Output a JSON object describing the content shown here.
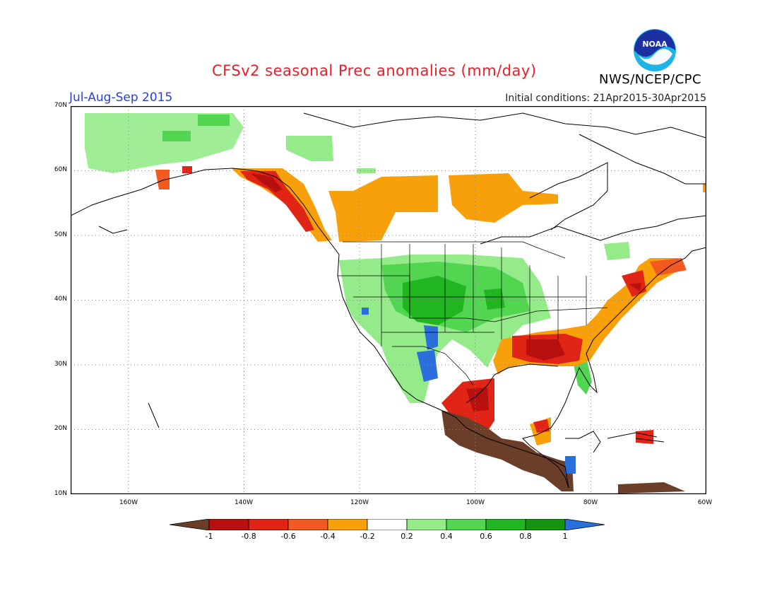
{
  "header": {
    "title": "CFSv2 seasonal Prec anomalies (mm/day)",
    "period": "Jul-Aug-Sep 2015",
    "initial_conditions": "Initial conditions: 21Apr2015-30Apr2015",
    "agency": "NWS/NCEP/CPC",
    "logo_text": "NOAA"
  },
  "map": {
    "lat_labels": [
      "70N",
      "60N",
      "50N",
      "40N",
      "30N",
      "20N",
      "10N"
    ],
    "lon_labels": [
      "160W",
      "140W",
      "120W",
      "100W",
      "80W",
      "60W"
    ]
  },
  "colorbar": {
    "ticks": [
      "-1",
      "-0.8",
      "-0.6",
      "-0.4",
      "-0.2",
      "0.2",
      "0.4",
      "0.6",
      "0.8",
      "1"
    ],
    "colors": [
      "#6b3e2a",
      "#b80f0f",
      "#e02416",
      "#f25a1f",
      "#f7a00a",
      "#ffffff",
      "#95eb8a",
      "#52d652",
      "#22b522",
      "#129612",
      "#2a6fdb"
    ]
  }
}
